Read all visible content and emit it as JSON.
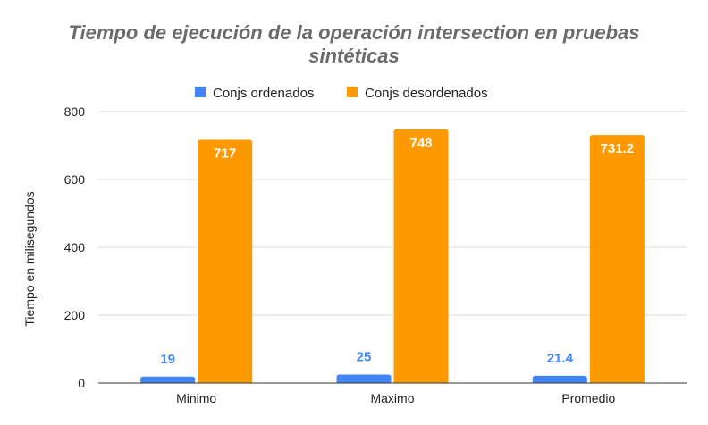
{
  "chart_data": {
    "type": "bar",
    "title_lines": [
      "Tiempo de ejecución de la operación intersection en pruebas",
      "sintéticas"
    ],
    "xlabel": "",
    "ylabel": "Tiempo en milisegundos",
    "categories": [
      "Minimo",
      "Maximo",
      "Promedio"
    ],
    "ylim": [
      0,
      800
    ],
    "yticks": [
      0,
      200,
      400,
      600,
      800
    ],
    "grid": true,
    "legend_position": "top",
    "series": [
      {
        "name": "Conjs ordenados",
        "color": "#4285f4",
        "values": [
          19,
          25,
          21.4
        ],
        "labels": [
          "19",
          "25",
          "21.4"
        ],
        "label_color": "#4285f4"
      },
      {
        "name": "Conjs desordenados",
        "color": "#ff9900",
        "values": [
          717,
          748,
          731.2
        ],
        "labels": [
          "717",
          "748",
          "731.2"
        ],
        "label_color": "#ffffff"
      }
    ]
  }
}
